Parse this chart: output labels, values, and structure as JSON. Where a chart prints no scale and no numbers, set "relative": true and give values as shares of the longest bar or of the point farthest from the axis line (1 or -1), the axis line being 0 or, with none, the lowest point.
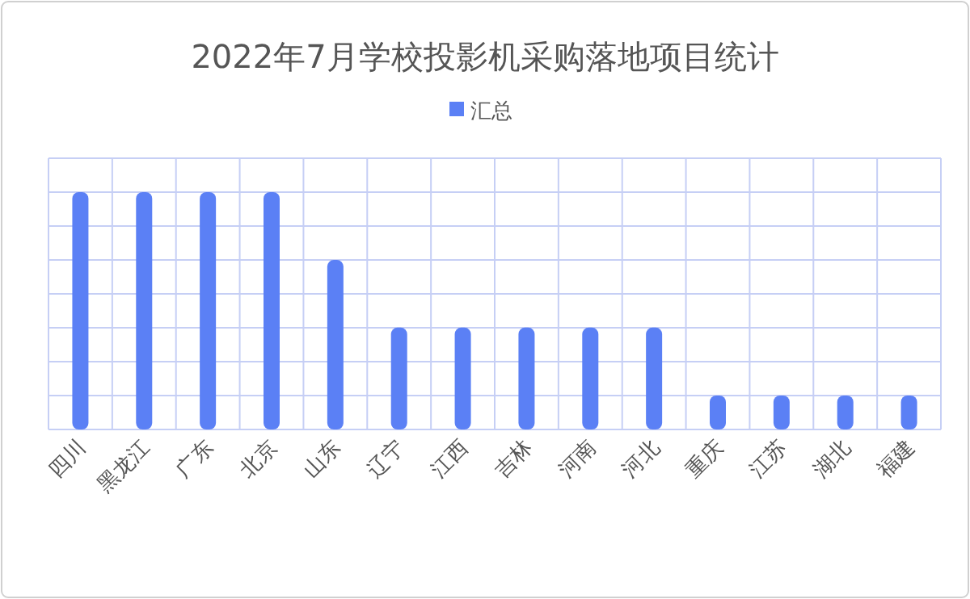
{
  "chart_data": {
    "type": "bar",
    "title": "2022年7月学校投影机采购落地项目统计",
    "relative": true,
    "grid": true,
    "legend": "top",
    "categories": [
      "四川",
      "黑龙江",
      "广东",
      "北京",
      "山东",
      "辽宁",
      "江西",
      "吉林",
      "河南",
      "河北",
      "重庆",
      "江苏",
      "湖北",
      "福建"
    ],
    "series": [
      {
        "name": "汇总",
        "color": "#5b80f5",
        "values": [
          1,
          1,
          1,
          1,
          0.714,
          0.429,
          0.429,
          0.429,
          0.429,
          0.429,
          0.143,
          0.143,
          0.143,
          0.143
        ]
      }
    ]
  }
}
